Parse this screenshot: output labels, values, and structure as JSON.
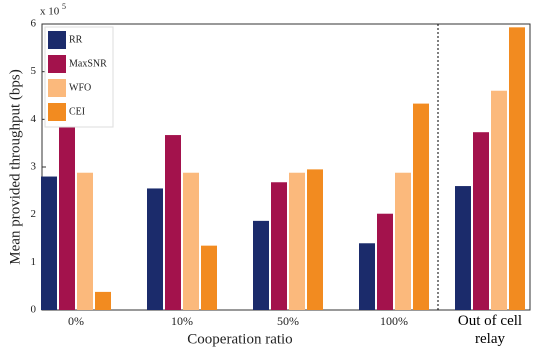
{
  "chart_data": {
    "type": "bar",
    "ylabel": "Mean provided throughput (bps)",
    "xlabel": "Cooperation ratio",
    "y_multiplier": "x 10",
    "y_multiplier_exponent": "5",
    "categories": [
      "0%",
      "10%",
      "50%",
      "100%",
      "Out of cell relay"
    ],
    "series": [
      {
        "name": "RR",
        "color": "#1b2b6b",
        "values": [
          2.8,
          2.55,
          1.87,
          1.4,
          2.6
        ]
      },
      {
        "name": "MaxSNR",
        "color": "#a3124c",
        "values": [
          3.9,
          3.67,
          2.68,
          2.02,
          3.73
        ]
      },
      {
        "name": "WFO",
        "color": "#fbb97c",
        "values": [
          2.88,
          2.88,
          2.88,
          2.88,
          4.6
        ]
      },
      {
        "name": "CEI",
        "color": "#f28b20",
        "values": [
          0.38,
          1.35,
          2.95,
          4.33,
          5.93
        ]
      }
    ],
    "ylim": [
      0,
      6
    ],
    "yticks": [
      0,
      1,
      2,
      3,
      4,
      5,
      6
    ],
    "legend": "upper-left"
  }
}
